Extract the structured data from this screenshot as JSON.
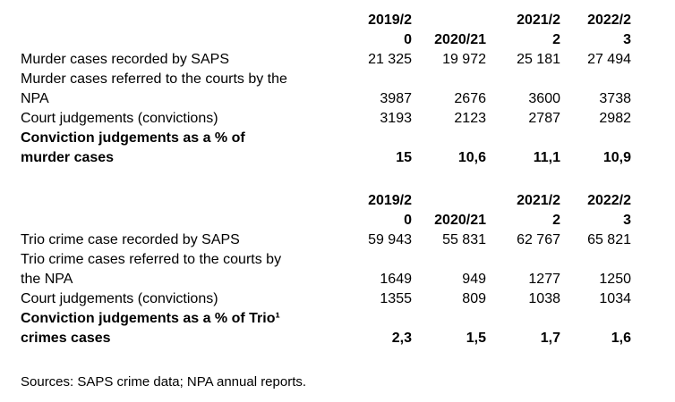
{
  "sources": "Sources: SAPS crime data; NPA annual reports.",
  "tables": [
    {
      "name": "murder-cases-table",
      "columns": [
        "",
        "2019/2\n0",
        "2020/21",
        "2021/2\n2",
        "2022/2\n3"
      ],
      "rows": [
        {
          "label": "Murder cases recorded by SAPS",
          "bold": false,
          "values": [
            "21 325",
            "19 972",
            "25 181",
            "27 494"
          ]
        },
        {
          "label": "Murder cases referred to the courts by the\nNPA",
          "bold": false,
          "values": [
            "3987",
            "2676",
            "3600",
            "3738"
          ]
        },
        {
          "label": "Court judgements (convictions)",
          "bold": false,
          "values": [
            "3193",
            "2123",
            "2787",
            "2982"
          ]
        },
        {
          "label": "Conviction judgements as a % of\nmurder cases",
          "bold": true,
          "values": [
            "15",
            "10,6",
            "11,1",
            "10,9"
          ]
        }
      ]
    },
    {
      "name": "trio-crimes-table",
      "columns": [
        "",
        "2019/2\n0",
        "2020/21",
        "2021/2\n2",
        "2022/2\n3"
      ],
      "rows": [
        {
          "label": "Trio crime case recorded by SAPS",
          "bold": false,
          "values": [
            "59 943",
            "55 831",
            "62 767",
            "65 821"
          ]
        },
        {
          "label": "Trio crime cases referred to the courts by\nthe NPA",
          "bold": false,
          "values": [
            "1649",
            "949",
            "1277",
            "1250"
          ]
        },
        {
          "label": "Court judgements (convictions)",
          "bold": false,
          "values": [
            "1355",
            "809",
            "1038",
            "1034"
          ]
        },
        {
          "label": "Conviction judgements as a % of Trio¹\ncrimes cases",
          "bold": true,
          "values": [
            "2,3",
            "1,5",
            "1,7",
            "1,6"
          ]
        }
      ]
    }
  ]
}
